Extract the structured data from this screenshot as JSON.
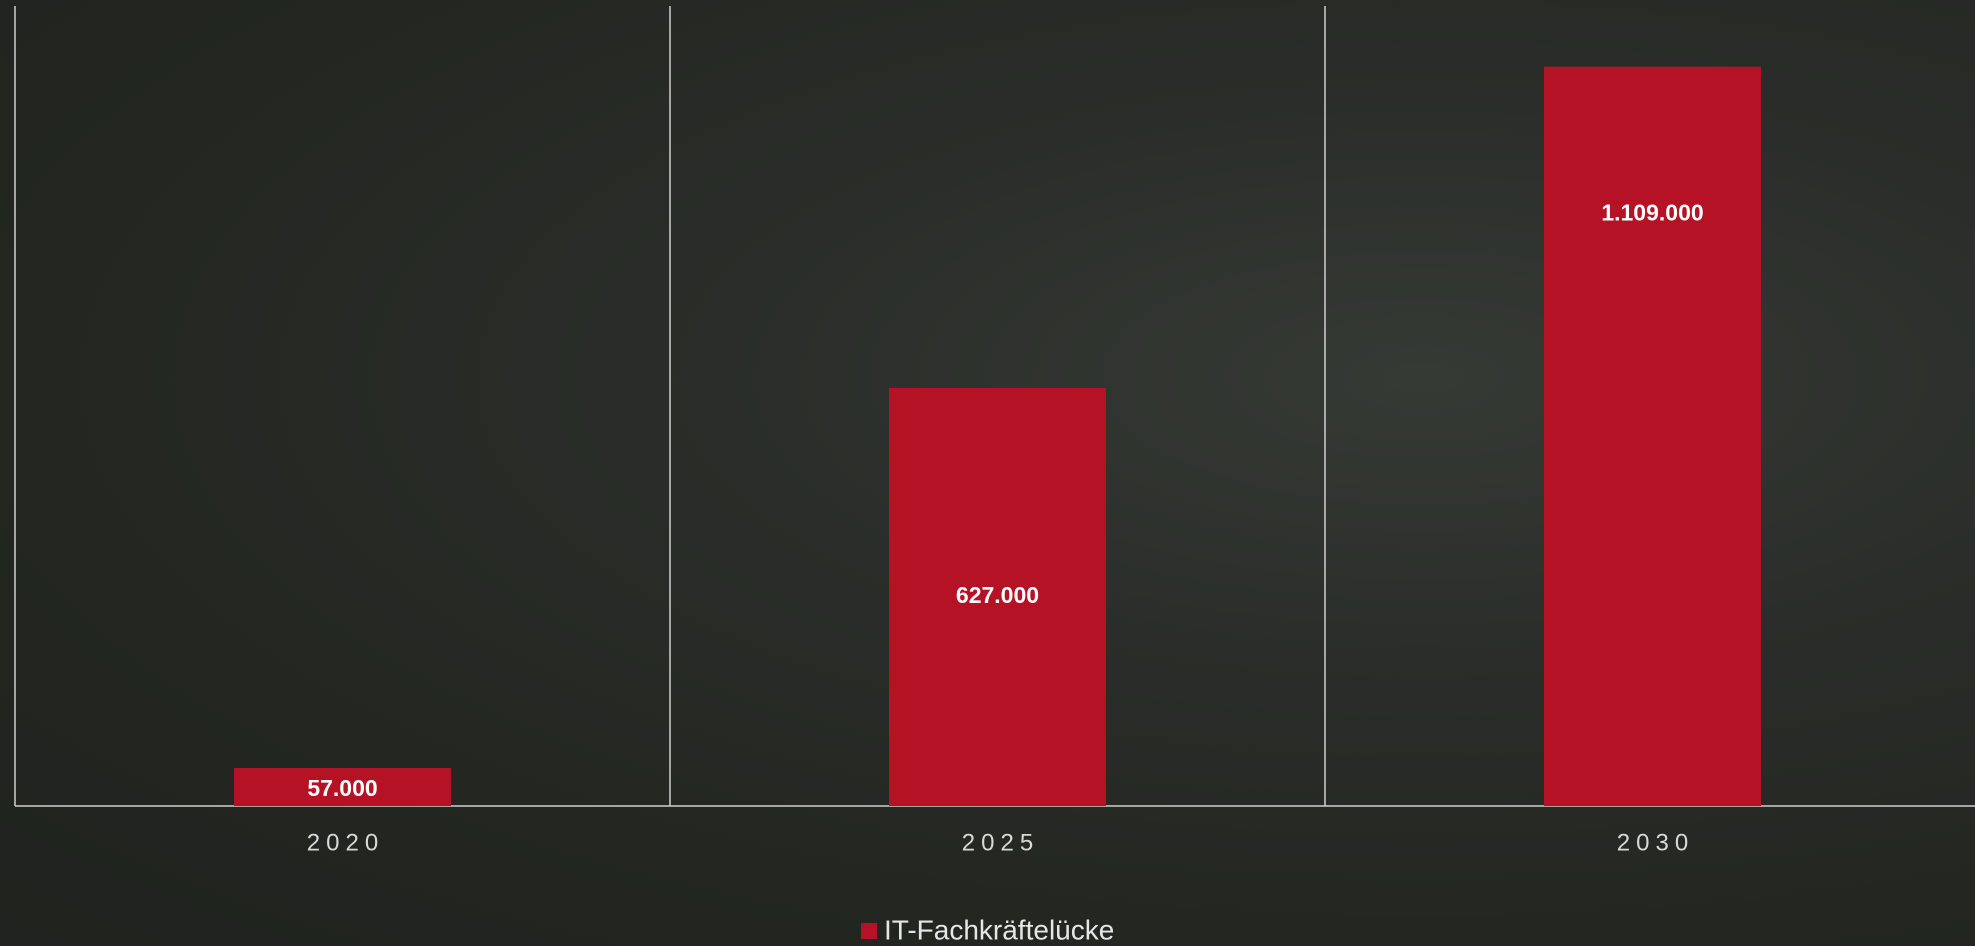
{
  "chart_data": {
    "type": "bar",
    "categories": [
      "2020",
      "2025",
      "2030"
    ],
    "series": [
      {
        "name": "IT-Fachkräftelücke",
        "color": "#b51226",
        "values": [
          57000,
          627000,
          1109000
        ],
        "value_labels": [
          "57.000",
          "627.000",
          "1.109.000"
        ]
      }
    ],
    "ylim": [
      0,
      1200000
    ]
  }
}
